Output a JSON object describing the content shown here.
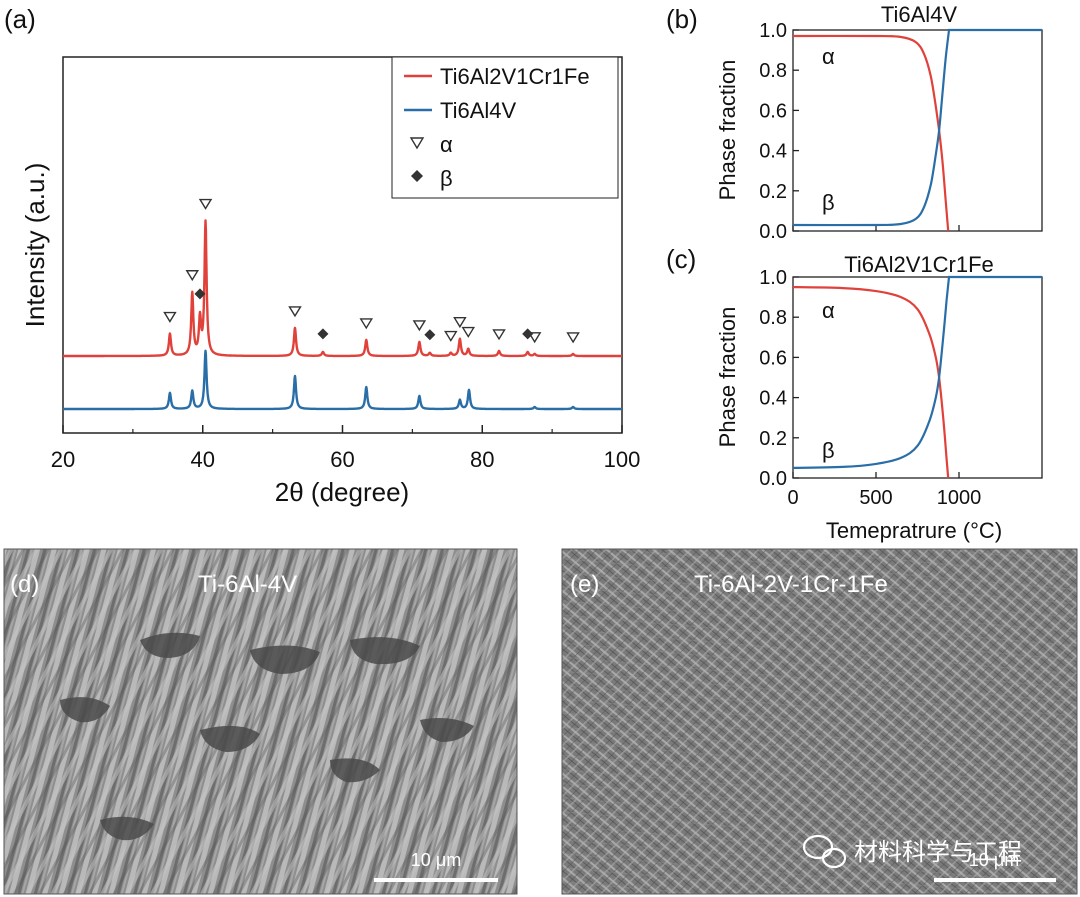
{
  "chart_data": [
    {
      "panel": "(a)",
      "type": "line",
      "xlabel": "2θ (degree)",
      "ylabel": "Intensity (a.u.)",
      "xlim": [
        20,
        100
      ],
      "xticks": [
        20,
        40,
        60,
        80,
        100
      ],
      "colors": {
        "red": "#e0413a",
        "blue": "#2a6ea8"
      },
      "series": [
        {
          "name": "Ti6Al2V1Cr1Fe",
          "color": "#e0413a",
          "offset": 0.42,
          "peaks": [
            [
              35.3,
              0.22
            ],
            [
              38.5,
              0.62
            ],
            [
              39.6,
              0.36
            ],
            [
              40.4,
              1.33
            ],
            [
              53.2,
              0.28
            ],
            [
              57.2,
              0.04
            ],
            [
              63.4,
              0.16
            ],
            [
              71.0,
              0.14
            ],
            [
              72.5,
              0.03
            ],
            [
              75.5,
              0.03
            ],
            [
              76.8,
              0.17
            ],
            [
              78.0,
              0.07
            ],
            [
              82.4,
              0.05
            ],
            [
              86.5,
              0.04
            ],
            [
              87.5,
              0.02
            ],
            [
              93.0,
              0.02
            ]
          ]
        },
        {
          "name": "Ti6Al4V",
          "color": "#2a6ea8",
          "offset": 0.0,
          "peaks": [
            [
              35.3,
              0.16
            ],
            [
              38.5,
              0.18
            ],
            [
              40.4,
              0.58
            ],
            [
              53.2,
              0.33
            ],
            [
              63.4,
              0.22
            ],
            [
              71.0,
              0.13
            ],
            [
              76.8,
              0.09
            ],
            [
              78.1,
              0.19
            ],
            [
              87.5,
              0.02
            ],
            [
              93.0,
              0.02
            ]
          ]
        }
      ],
      "legend": [
        {
          "label": "Ti6Al2V1Cr1Fe",
          "kind": "line",
          "color": "#e0413a"
        },
        {
          "label": "Ti6Al4V",
          "kind": "line",
          "color": "#2a6ea8"
        },
        {
          "label": "α",
          "kind": "triangle"
        },
        {
          "label": "β",
          "kind": "diamond"
        }
      ],
      "alpha_markers": [
        35.3,
        38.5,
        40.4,
        53.2,
        63.4,
        71.0,
        75.5,
        76.8,
        78.0,
        82.4,
        87.5,
        93.0
      ],
      "beta_markers": [
        39.6,
        57.2,
        72.5,
        86.5
      ]
    },
    {
      "panel": "(b)",
      "type": "line",
      "title": "Ti6Al4V",
      "ylabel": "Phase fraction",
      "xlim": [
        0,
        1500
      ],
      "ylim": [
        0,
        1.0
      ],
      "yticks": [
        "0.0",
        "0.2",
        "0.4",
        "0.6",
        "0.8",
        "1.0"
      ],
      "series": [
        {
          "name": "α",
          "color": "#e0413a",
          "points": [
            [
              0,
              0.97
            ],
            [
              500,
              0.97
            ],
            [
              650,
              0.965
            ],
            [
              740,
              0.94
            ],
            [
              790,
              0.88
            ],
            [
              830,
              0.77
            ],
            [
              860,
              0.62
            ],
            [
              880,
              0.5
            ],
            [
              900,
              0.35
            ],
            [
              920,
              0.15
            ],
            [
              935,
              0.0
            ]
          ]
        },
        {
          "name": "β",
          "color": "#2a6ea8",
          "points": [
            [
              0,
              0.03
            ],
            [
              500,
              0.03
            ],
            [
              650,
              0.035
            ],
            [
              740,
              0.06
            ],
            [
              790,
              0.12
            ],
            [
              830,
              0.23
            ],
            [
              860,
              0.38
            ],
            [
              880,
              0.5
            ],
            [
              900,
              0.68
            ],
            [
              920,
              0.86
            ],
            [
              940,
              1.0
            ]
          ]
        }
      ],
      "labels": {
        "alpha": "α",
        "beta": "β"
      }
    },
    {
      "panel": "(c)",
      "type": "line",
      "title": "Ti6Al2V1Cr1Fe",
      "xlabel": "Temepratrure (°C)",
      "ylabel": "Phase fraction",
      "xlim": [
        0,
        1500
      ],
      "ylim": [
        0,
        1.0
      ],
      "xticks": [
        0,
        500,
        1000
      ],
      "yticks": [
        "0.0",
        "0.2",
        "0.4",
        "0.6",
        "0.8",
        "1.0"
      ],
      "series": [
        {
          "name": "α",
          "color": "#e0413a",
          "points": [
            [
              0,
              0.95
            ],
            [
              300,
              0.945
            ],
            [
              500,
              0.93
            ],
            [
              650,
              0.9
            ],
            [
              750,
              0.84
            ],
            [
              820,
              0.72
            ],
            [
              860,
              0.6
            ],
            [
              880,
              0.5
            ],
            [
              905,
              0.3
            ],
            [
              925,
              0.1
            ],
            [
              935,
              0.0
            ]
          ]
        },
        {
          "name": "β",
          "color": "#2a6ea8",
          "points": [
            [
              0,
              0.05
            ],
            [
              300,
              0.055
            ],
            [
              500,
              0.07
            ],
            [
              650,
              0.1
            ],
            [
              750,
              0.16
            ],
            [
              820,
              0.28
            ],
            [
              860,
              0.4
            ],
            [
              880,
              0.5
            ],
            [
              905,
              0.7
            ],
            [
              925,
              0.88
            ],
            [
              940,
              1.0
            ]
          ]
        }
      ],
      "labels": {
        "alpha": "α",
        "beta": "β"
      }
    }
  ],
  "micrographs": {
    "d": {
      "panel": "(d)",
      "title": "Ti-6Al-4V",
      "scale": "10 μm"
    },
    "e": {
      "panel": "(e)",
      "title": "Ti-6Al-2V-1Cr-1Fe",
      "scale": "10 μm"
    }
  },
  "watermark": {
    "text": "材料科学与工程"
  }
}
